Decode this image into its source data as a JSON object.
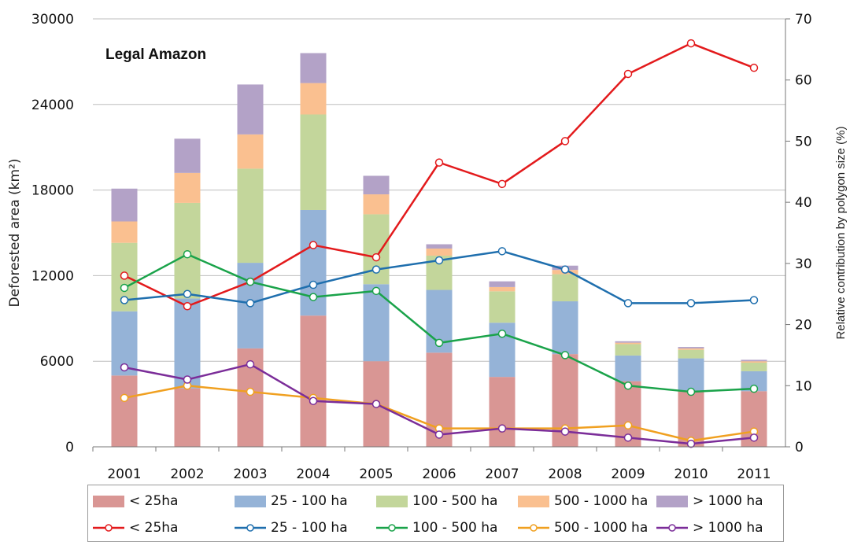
{
  "chart_data": {
    "type": "bar+line",
    "title": "Legal Amazon",
    "ylabel": "Deforested area (km²)",
    "y2label": "Relative contribution by polygon size (%)",
    "ylim": [
      0,
      30000
    ],
    "y2lim": [
      0,
      70
    ],
    "yticks": [
      "0",
      "6000",
      "12000",
      "18000",
      "24000",
      "30000"
    ],
    "y2ticks": [
      "0",
      "10",
      "20",
      "30",
      "40",
      "50",
      "60",
      "70"
    ],
    "grid": true,
    "categories": [
      "2001",
      "2002",
      "2003",
      "2004",
      "2005",
      "2006",
      "2007",
      "2008",
      "2009",
      "2010",
      "2011"
    ],
    "bar_series": [
      {
        "name": "< 25ha",
        "color": "#d99694",
        "values": [
          5000,
          4100,
          6900,
          9200,
          6000,
          6600,
          4900,
          6500,
          4600,
          3900,
          3900
        ]
      },
      {
        "name": "25 - 100 ha",
        "color": "#95b3d7",
        "values": [
          4500,
          6300,
          6000,
          7400,
          5400,
          4400,
          3800,
          3700,
          1800,
          2300,
          1400
        ]
      },
      {
        "name": "100 - 500 ha",
        "color": "#c3d69b",
        "values": [
          4800,
          6700,
          6600,
          6700,
          4900,
          2400,
          2200,
          1900,
          800,
          600,
          600
        ]
      },
      {
        "name": "500 - 1000 ha",
        "color": "#fac090",
        "values": [
          1500,
          2100,
          2400,
          2200,
          1400,
          500,
          300,
          300,
          100,
          100,
          100
        ]
      },
      {
        "name": "> 1000 ha",
        "color": "#b3a2c7",
        "values": [
          2300,
          2400,
          3500,
          2100,
          1300,
          300,
          400,
          300,
          100,
          100,
          100
        ]
      }
    ],
    "line_series": [
      {
        "name": "< 25ha",
        "color": "#e31a1c",
        "values": [
          28,
          23,
          27,
          33,
          31,
          46.5,
          43,
          50,
          61,
          66,
          62
        ]
      },
      {
        "name": "25 - 100 ha",
        "color": "#1f6fae",
        "values": [
          24,
          25,
          23.5,
          26.5,
          29,
          30.5,
          32,
          29,
          23.5,
          23.5,
          24
        ]
      },
      {
        "name": "100 - 500 ha",
        "color": "#1aa34a",
        "values": [
          26,
          31.5,
          27,
          24.5,
          25.5,
          17,
          18.5,
          15,
          10,
          9,
          9.5
        ]
      },
      {
        "name": "500 - 1000 ha",
        "color": "#f0a020",
        "values": [
          8,
          10,
          9,
          8,
          7,
          3,
          3,
          3,
          3.5,
          1,
          2.5
        ]
      },
      {
        "name": "> 1000 ha",
        "color": "#7b2d99",
        "values": [
          13,
          11,
          13.5,
          7.5,
          7,
          2,
          3,
          2.5,
          1.5,
          0.5,
          1.5
        ]
      }
    ]
  }
}
